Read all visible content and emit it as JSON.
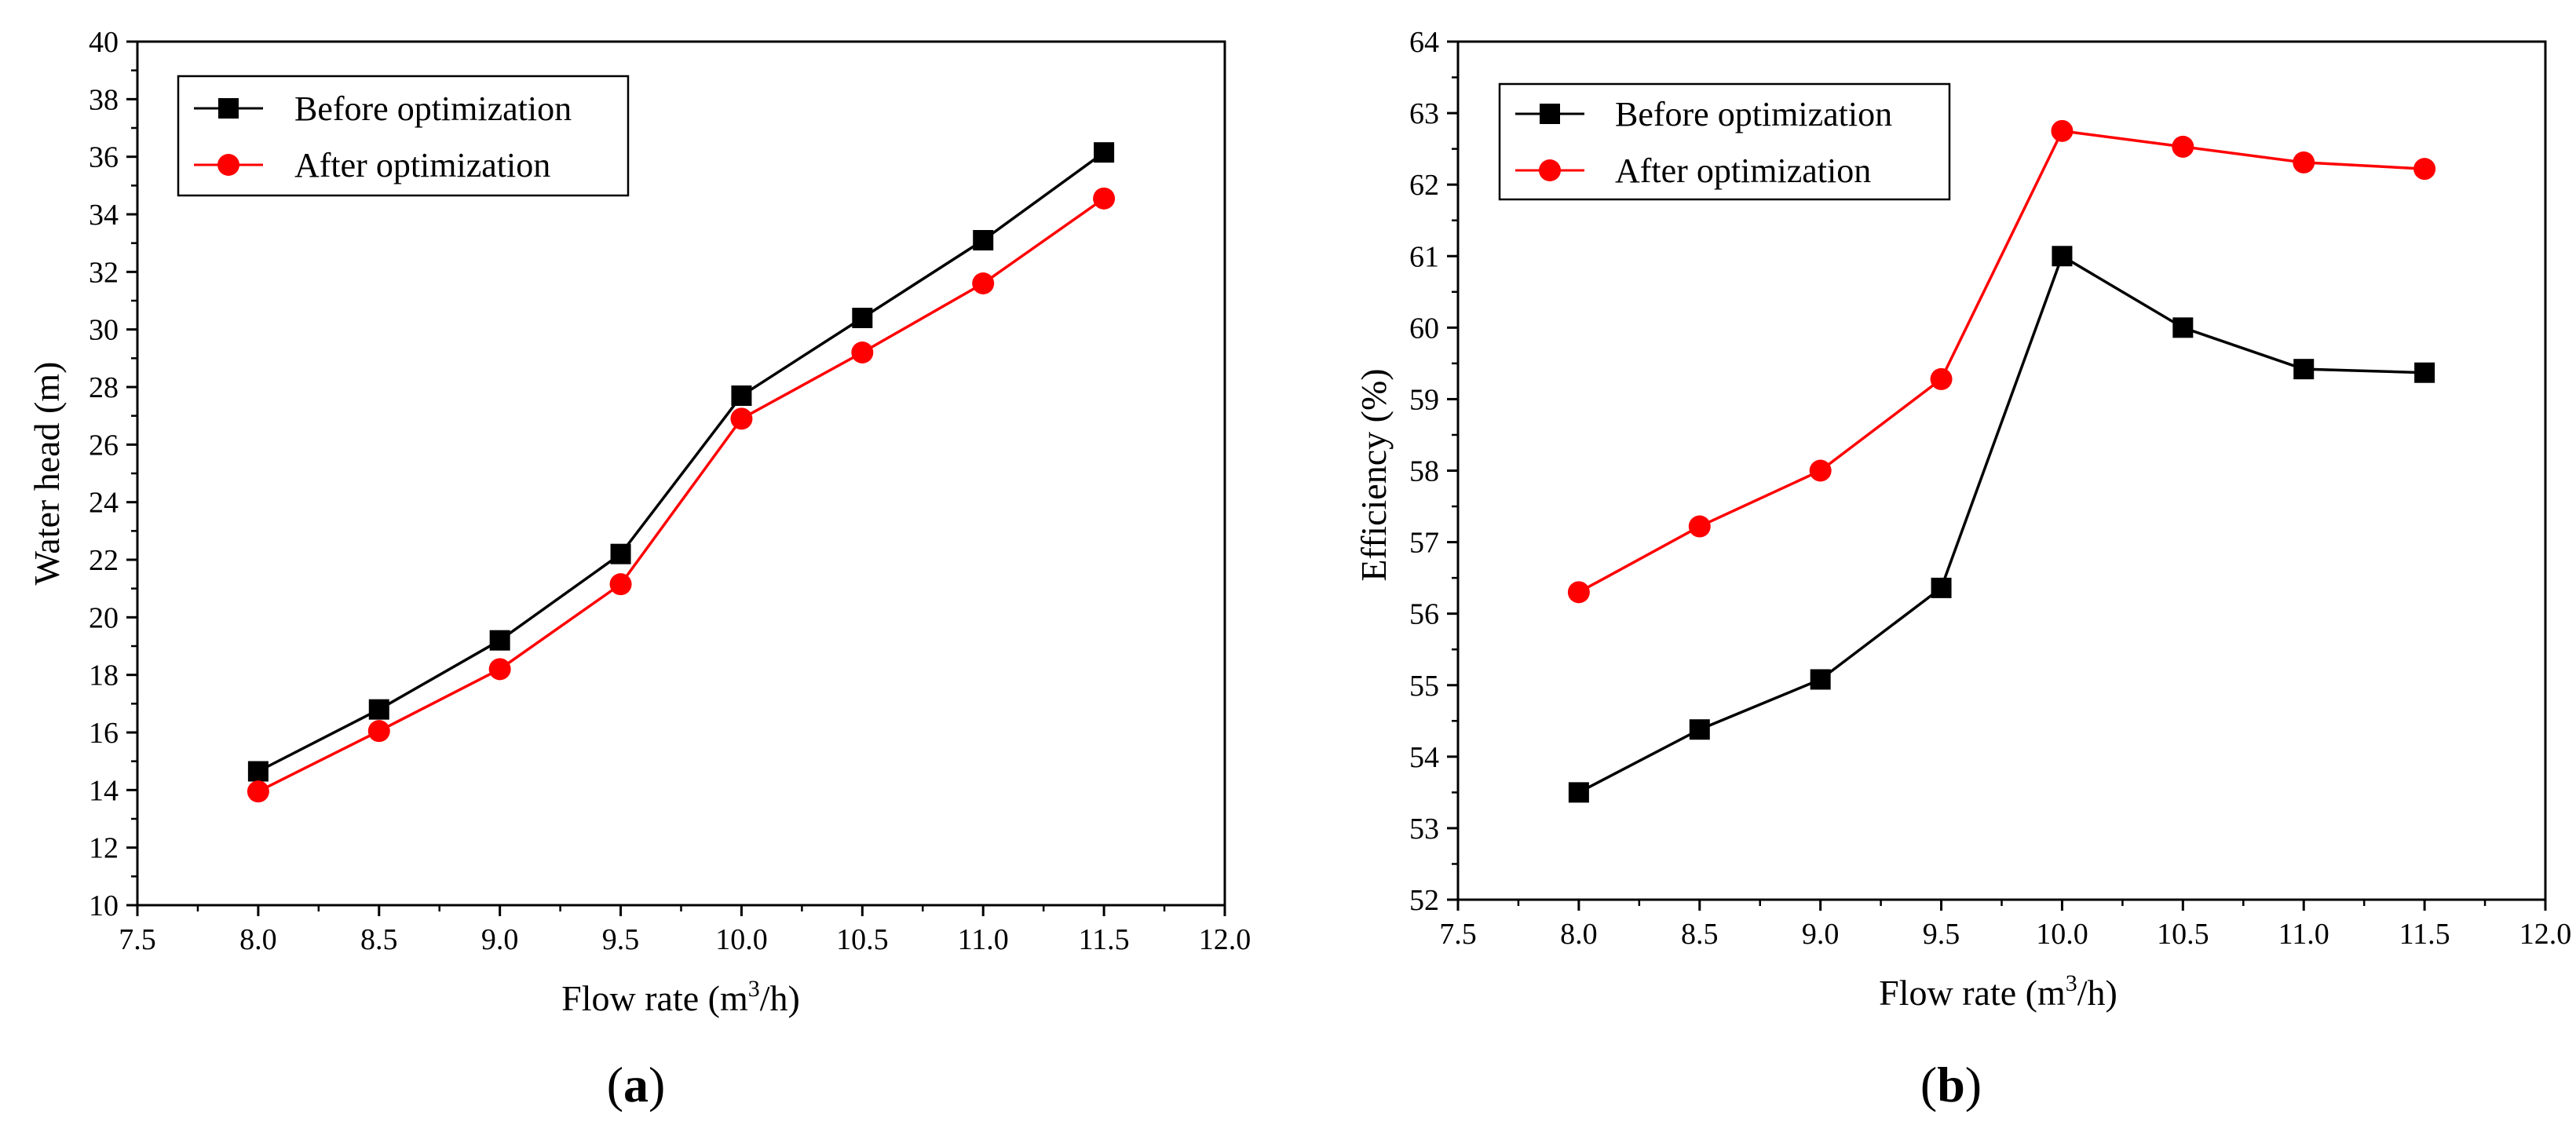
{
  "chart_data": [
    {
      "type": "line",
      "panel_label": "a",
      "xlabel_prefix": "Flow rate (m",
      "xlabel_sup": "3",
      "xlabel_suffix": "/h)",
      "ylabel": "Water head (m)",
      "xlim": [
        7.5,
        12.0
      ],
      "ylim": [
        10,
        40
      ],
      "xticks": [
        "7.5",
        "8.0",
        "8.5",
        "9.0",
        "9.5",
        "10.0",
        "10.5",
        "11.0",
        "11.5",
        "12.0"
      ],
      "yticks": [
        "10",
        "12",
        "14",
        "16",
        "18",
        "20",
        "22",
        "24",
        "26",
        "28",
        "30",
        "32",
        "34",
        "36",
        "38",
        "40"
      ],
      "x": [
        8.0,
        8.5,
        9.0,
        9.5,
        10.0,
        10.5,
        11.0,
        11.5
      ],
      "legend_position": "top-left",
      "series": [
        {
          "name": "Before optimization",
          "color": "#000000",
          "marker": "square",
          "values": [
            14.65,
            16.8,
            19.2,
            22.2,
            27.7,
            30.4,
            33.1,
            36.15
          ]
        },
        {
          "name": "After optimization",
          "color": "#ff0000",
          "marker": "circle",
          "values": [
            13.95,
            16.05,
            18.2,
            21.15,
            26.9,
            29.2,
            31.6,
            34.55
          ]
        }
      ]
    },
    {
      "type": "line",
      "panel_label": "b",
      "xlabel_prefix": "Flow rate (m",
      "xlabel_sup": "3",
      "xlabel_suffix": "/h)",
      "ylabel": "Efficiency (%)",
      "xlim": [
        7.5,
        12.0
      ],
      "ylim": [
        52,
        64
      ],
      "xticks": [
        "7.5",
        "8.0",
        "8.5",
        "9.0",
        "9.5",
        "10.0",
        "10.5",
        "11.0",
        "11.5",
        "12.0"
      ],
      "yticks": [
        "52",
        "53",
        "54",
        "55",
        "56",
        "57",
        "58",
        "59",
        "60",
        "61",
        "62",
        "63",
        "64"
      ],
      "x": [
        8.0,
        8.5,
        9.0,
        9.5,
        10.0,
        10.5,
        11.0,
        11.5
      ],
      "legend_position": "top-left",
      "series": [
        {
          "name": "Before optimization",
          "color": "#000000",
          "marker": "square",
          "values": [
            53.5,
            54.38,
            55.08,
            56.36,
            61.0,
            60.0,
            59.42,
            59.37
          ]
        },
        {
          "name": "After optimization",
          "color": "#ff0000",
          "marker": "circle",
          "values": [
            56.3,
            57.22,
            58.0,
            59.28,
            62.75,
            62.53,
            62.31,
            62.22
          ]
        }
      ]
    }
  ]
}
